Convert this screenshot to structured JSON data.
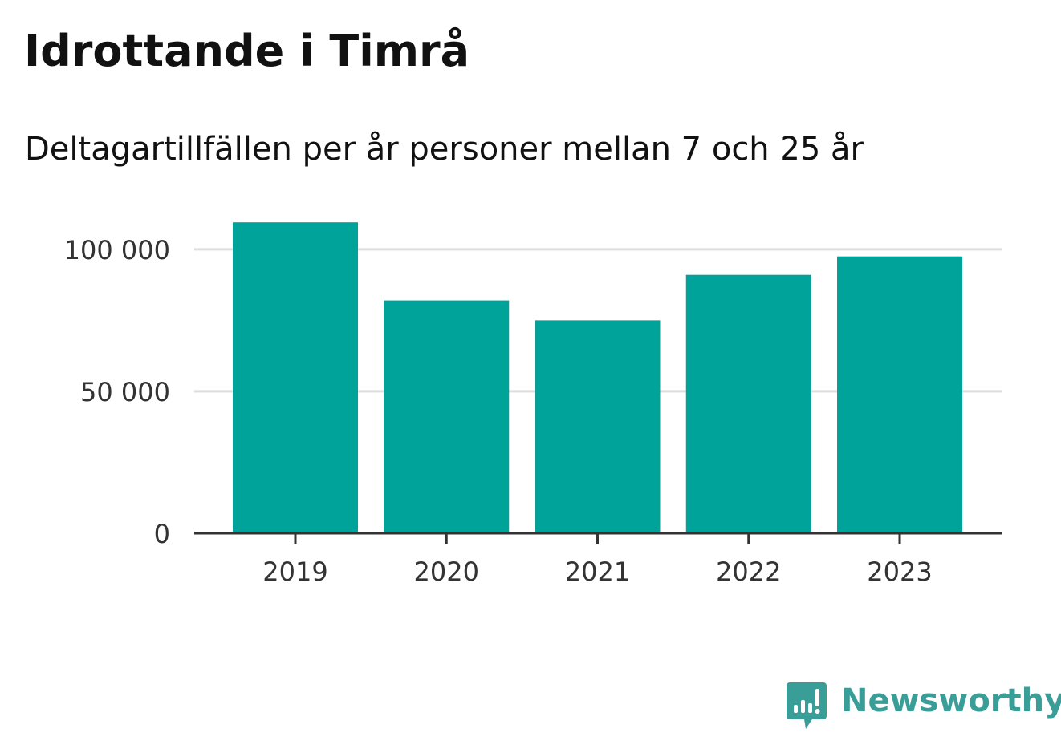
{
  "header": {
    "title": "Idrottande i Timrå",
    "subtitle": "Deltagartillfällen per år personer mellan 7 och 25 år"
  },
  "brand": {
    "name": "Newsworthy",
    "icon": "newsworthy-logo-icon",
    "color": "#3a9e98"
  },
  "colors": {
    "bar": "#00a39a",
    "grid": "#dddddd",
    "axis": "#333333",
    "text": "#111111"
  },
  "chart_data": {
    "type": "bar",
    "title": "Idrottande i Timrå",
    "subtitle": "Deltagartillfällen per år personer mellan 7 och 25 år",
    "categories": [
      "2019",
      "2020",
      "2021",
      "2022",
      "2023"
    ],
    "values": [
      109500,
      82000,
      75000,
      91000,
      97500
    ],
    "ylim": [
      0,
      120000
    ],
    "yticks": [
      0,
      50000,
      100000
    ],
    "ytick_labels": [
      "0",
      "50 000",
      "100 000"
    ],
    "xlabel": "",
    "ylabel": "",
    "grid": true,
    "legend": false
  }
}
